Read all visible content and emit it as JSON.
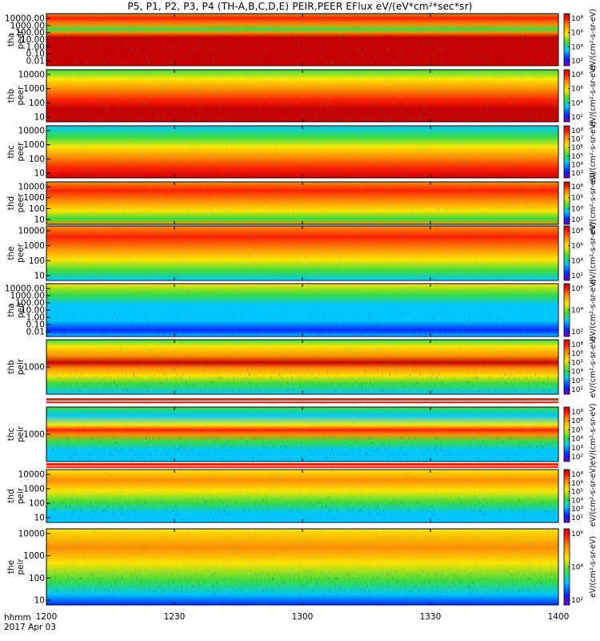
{
  "title": "P5, P1, P2, P3, P4 (TH-A,B,C,D,E) PEIR,PEER EFlux eV/(eV*cm²*sec*sr)",
  "footer": {
    "line1": "hhmm",
    "line2": "2017 Apr 03"
  },
  "chart_data": {
    "type": "heatmap",
    "title": "P5, P1, P2, P3, P4 (TH-A,B,C,D,E) PEIR,PEER EFlux eV/(eV*cm²*sec*sr)",
    "x_axis": {
      "label": "hhmm",
      "date": "2017 Apr 03",
      "range": [
        "1200",
        "1400"
      ],
      "ticks": [
        "1200",
        "1230",
        "1300",
        "1330",
        "1400"
      ]
    },
    "y_scale": "log",
    "colorbar": {
      "scale": "log",
      "colormap": "rainbow",
      "label": "[eV/(cm2-s-sr-eV)]"
    },
    "panels": [
      {
        "probe": "tha",
        "species": "peer",
        "label_top": "tha",
        "label_bottom": "peer",
        "yticks": [
          "10000.00",
          "1000.00",
          "100.00",
          "10.00",
          "1.00",
          "0.10",
          "0.01"
        ],
        "cb_ticks": [
          "10⁸",
          "10⁶",
          "10⁴",
          "10²"
        ],
        "cb_label": "eV/(cm²-s-sr-eV)"
      },
      {
        "probe": "thb",
        "species": "peer",
        "label_top": "thb",
        "label_bottom": "peer",
        "yticks": [
          "10000",
          "1000",
          "100",
          "10"
        ],
        "cb_ticks": [
          "10⁸",
          "10⁶",
          "10⁴",
          "10²"
        ],
        "cb_label": "eV/(cm²-s-sr-eV)"
      },
      {
        "probe": "thc",
        "species": "peer",
        "label_top": "thc",
        "label_bottom": "peer",
        "yticks": [
          "10000",
          "1000",
          "100",
          "10"
        ],
        "cb_ticks": [
          "10⁸",
          "10⁷",
          "10⁶",
          "10⁵",
          "10⁴",
          "10³"
        ],
        "cb_label": "eV/(cm²-s-sr-eV)"
      },
      {
        "probe": "thd",
        "species": "peer",
        "label_top": "thd",
        "label_bottom": "peer",
        "yticks": [
          "10000",
          "1000",
          "100",
          "10"
        ],
        "cb_ticks": [
          "10⁸",
          "10⁶",
          "10⁴",
          "10²"
        ],
        "cb_label": "eV/(cm²-s-sr-eV)"
      },
      {
        "probe": "the",
        "species": "peer",
        "label_top": "the",
        "label_bottom": "peer",
        "yticks": [
          "10000",
          "1000",
          "100",
          "10"
        ],
        "cb_ticks": [
          "10⁸",
          "10⁶",
          "10⁴",
          "10²"
        ],
        "cb_label": "eV/(cm²-s-sr-eV)"
      },
      {
        "probe": "tha",
        "species": "peir",
        "label_top": "tha",
        "label_bottom": "peir",
        "yticks": [
          "10000.00",
          "1000.00",
          "100.00",
          "10.00",
          "1.00",
          "0.10",
          "0.01"
        ],
        "cb_ticks": [
          "10⁶",
          "10⁴",
          "10²"
        ],
        "cb_label": "eV/(cm²-s-sr-eV)"
      },
      {
        "probe": "thb",
        "species": "peir",
        "label_top": "thb",
        "label_bottom": "peir",
        "yticks": [
          "1000"
        ],
        "cb_ticks": [
          "10⁸",
          "10⁶",
          "10⁵",
          "10⁴",
          "10³",
          "10²"
        ],
        "cb_label": "eV/(cm²-s-sr-eV)"
      },
      {
        "probe": "thc",
        "species": "peir",
        "label_top": "thc",
        "label_bottom": "peir",
        "yticks": [
          "1000"
        ],
        "cb_ticks": [
          "10⁸",
          "10⁶",
          "10⁵",
          "10⁴",
          "10³",
          "10²"
        ],
        "cb_label": "eV/(cm²-s-sr-eV)"
      },
      {
        "probe": "thd",
        "species": "peir",
        "label_top": "thd",
        "label_bottom": "peir",
        "yticks": [
          "10000",
          "1000",
          "100",
          "10"
        ],
        "cb_ticks": [
          "10⁸",
          "10⁶",
          "10⁵",
          "10⁴",
          "10³",
          "10²"
        ],
        "cb_label": "eV/(cm²-s-sr-eV)"
      },
      {
        "probe": "the",
        "species": "peir",
        "label_top": "the",
        "label_bottom": "peir",
        "yticks": [
          "10000",
          "1000",
          "100",
          "10"
        ],
        "cb_ticks": [
          "10⁶",
          "10⁴",
          "10²"
        ],
        "cb_label": "eV/(cm²-s-sr-eV)"
      }
    ],
    "colors": {
      "dark_red": "#c80000",
      "red": "#ff1e00",
      "orange": "#ff8c00",
      "yellow": "#ffe600",
      "green": "#3cdc3c",
      "cyan": "#00c8ff",
      "blue": "#0028ff",
      "purple": "#7800b4",
      "black": "#000000",
      "white": "#ffffff"
    }
  }
}
